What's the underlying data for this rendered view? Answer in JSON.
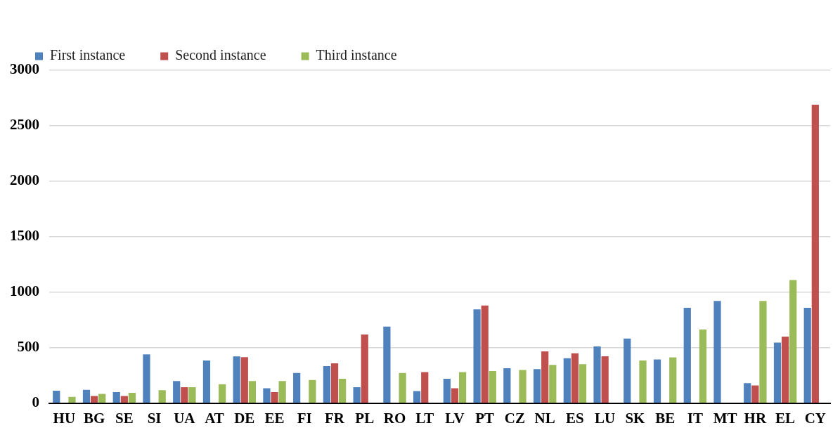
{
  "chart_data": {
    "type": "bar",
    "categories": [
      "HU",
      "BG",
      "SE",
      "SI",
      "UA",
      "AT",
      "DE",
      "EE",
      "FI",
      "FR",
      "PL",
      "RO",
      "LT",
      "LV",
      "PT",
      "CZ",
      "NL",
      "ES",
      "LU",
      "SK",
      "BE",
      "IT",
      "MT",
      "HR",
      "EL",
      "CY"
    ],
    "series": [
      {
        "name": "First instance",
        "color": "#4f81bd",
        "values": [
          112,
          120,
          100,
          440,
          200,
          385,
          422,
          135,
          272,
          335,
          145,
          690,
          110,
          220,
          845,
          315,
          307,
          405,
          512,
          583,
          395,
          860,
          922,
          180,
          547,
          860
        ]
      },
      {
        "name": "Second instance",
        "color": "#c0504d",
        "values": [
          null,
          65,
          65,
          null,
          145,
          null,
          415,
          100,
          null,
          360,
          620,
          null,
          280,
          135,
          880,
          null,
          467,
          450,
          423,
          null,
          null,
          null,
          null,
          160,
          600,
          2690
        ]
      },
      {
        "name": "Third instance",
        "color": "#9bbb59",
        "values": [
          57,
          85,
          93,
          118,
          145,
          172,
          200,
          200,
          210,
          220,
          null,
          272,
          null,
          280,
          290,
          300,
          345,
          352,
          null,
          385,
          413,
          665,
          null,
          922,
          1110,
          null
        ]
      }
    ],
    "ylim": [
      0,
      3000
    ],
    "yticks": [
      0,
      500,
      1000,
      1500,
      2000,
      2500,
      3000
    ],
    "grid": "y",
    "legend": "top left"
  }
}
